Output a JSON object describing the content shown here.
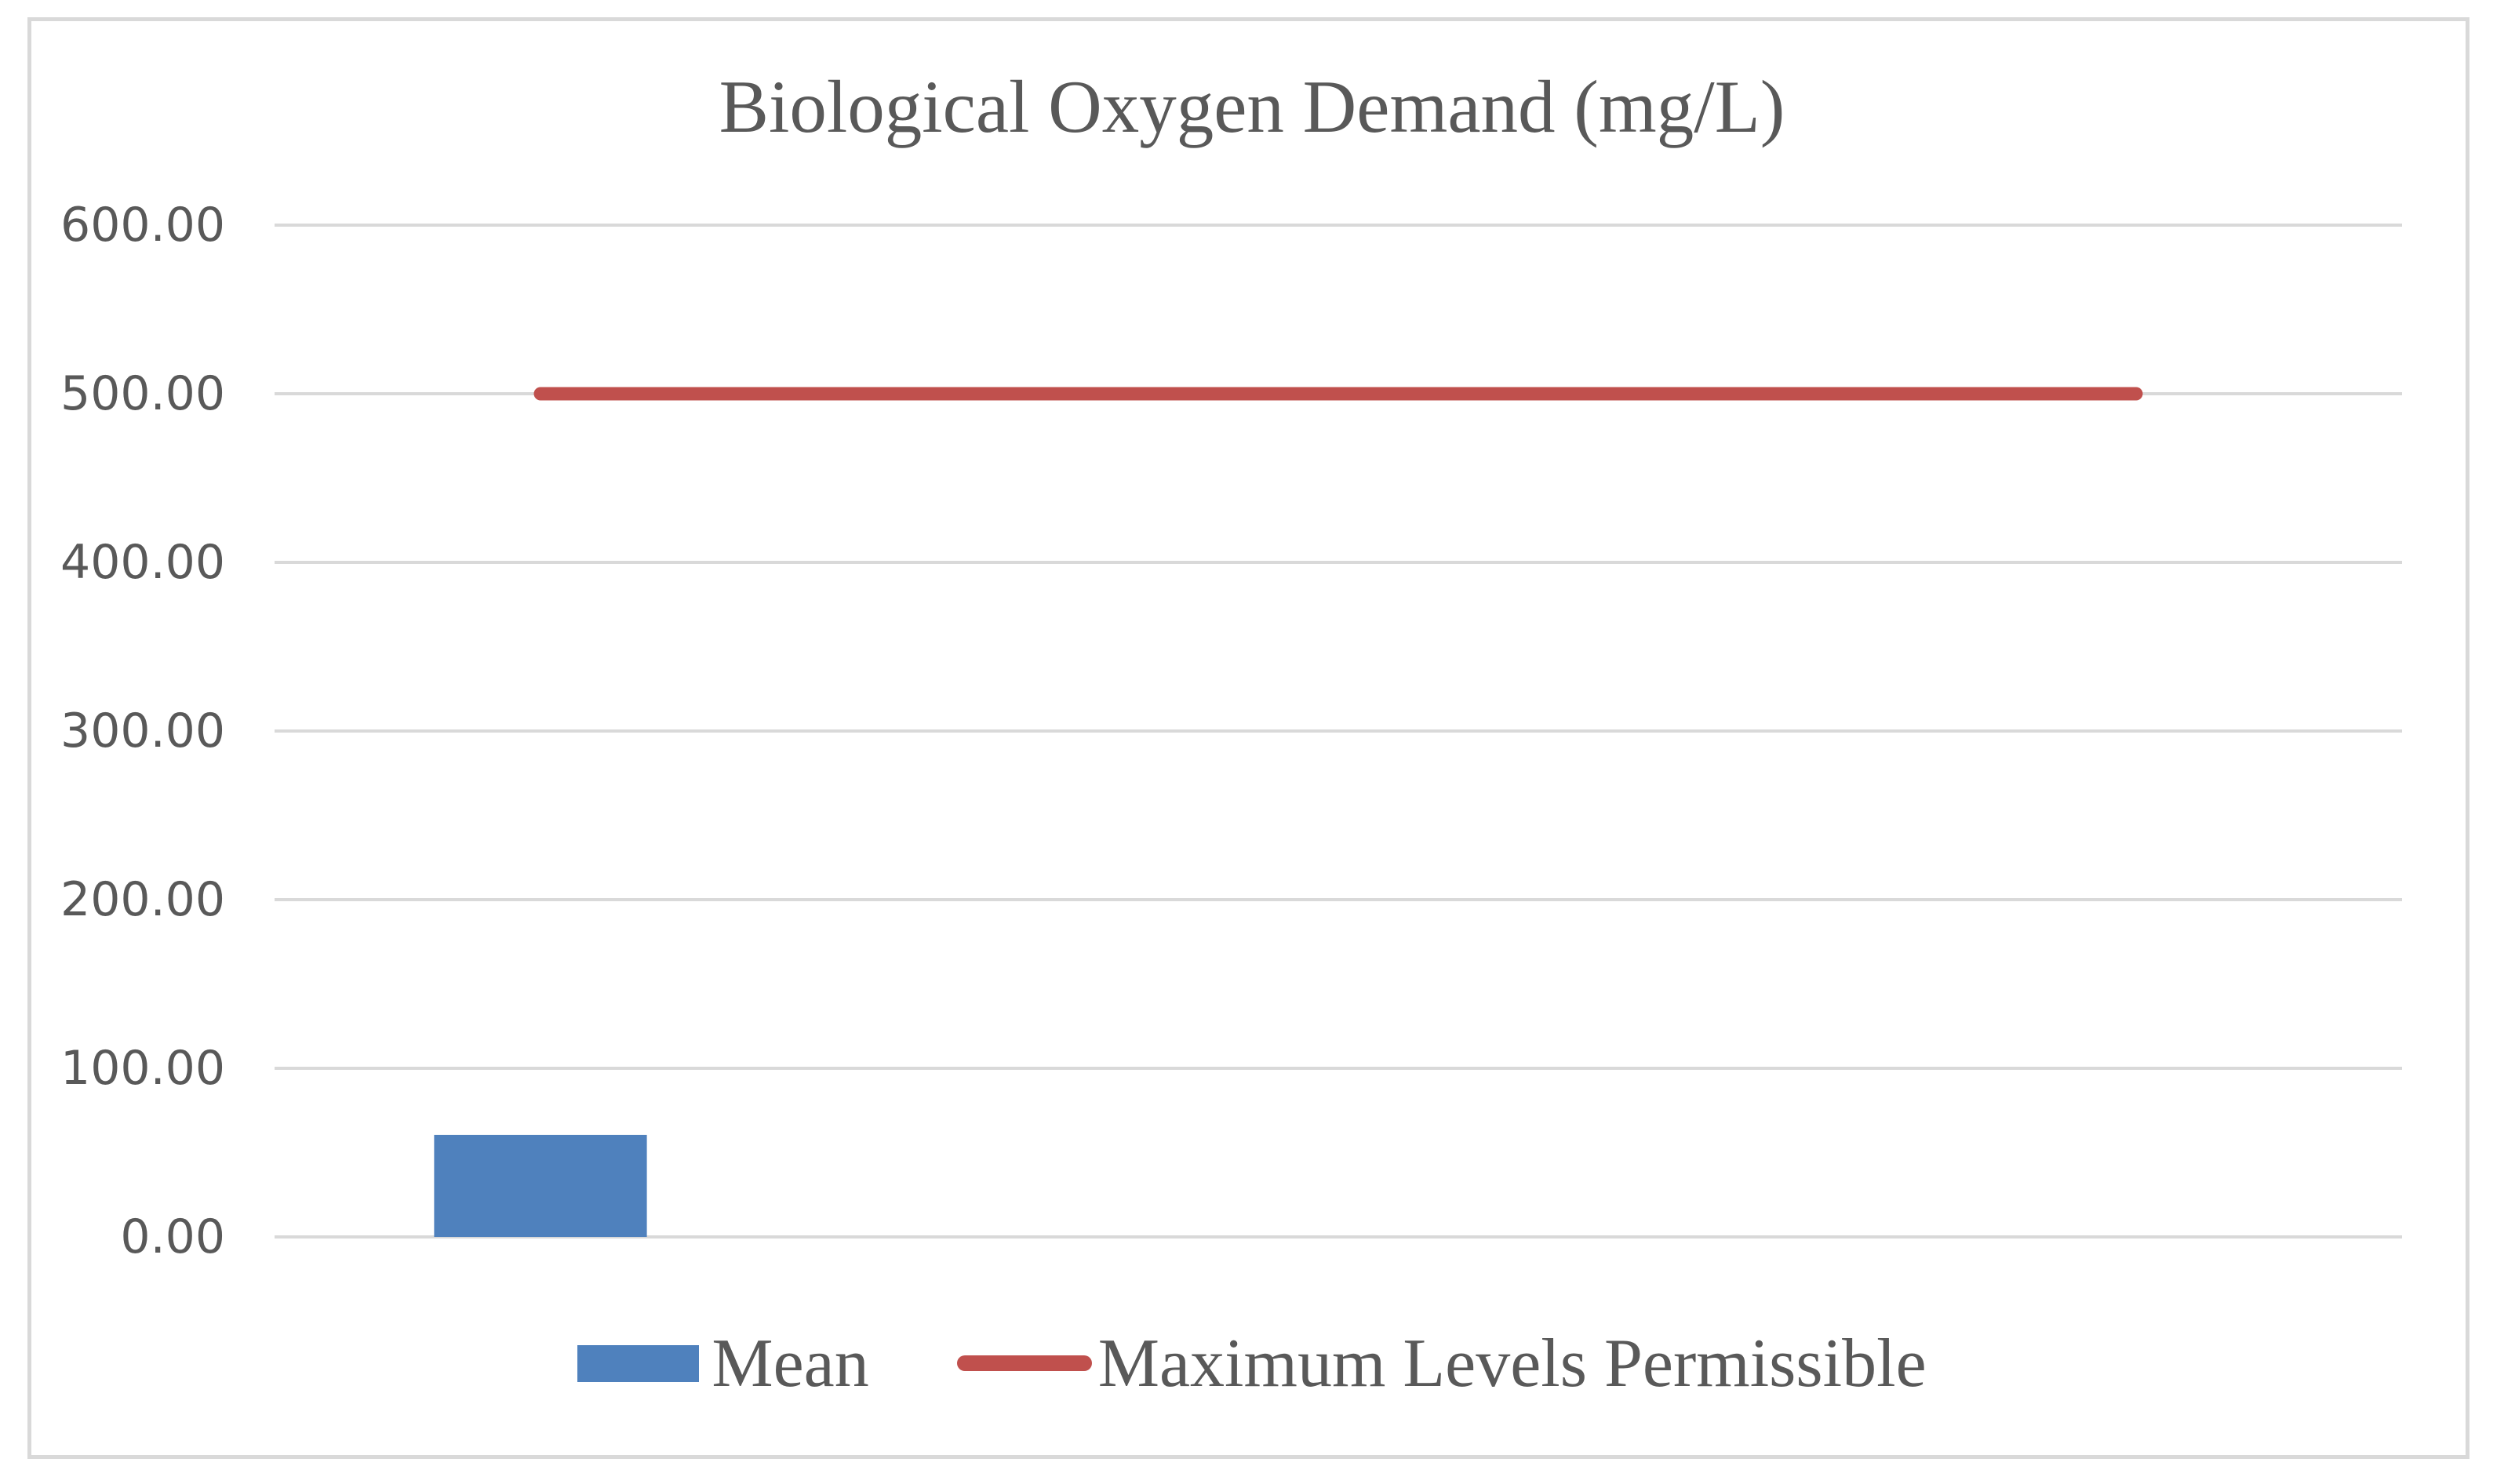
{
  "frame": {
    "background": "#FFFFFF",
    "border_color": "#D9D9D9"
  },
  "chart_data": {
    "type": "bar",
    "title": "Biological Oxygen Demand (mg/L)",
    "categories": [
      "",
      "",
      "",
      ""
    ],
    "series": [
      {
        "name": "Mean",
        "type": "bar",
        "color": "#4F81BD",
        "values": [
          60.5
        ]
      },
      {
        "name": "Maximum Levels Permissible",
        "type": "line",
        "color": "#C0504D",
        "value": 500
      }
    ],
    "xlabel": "",
    "ylabel": "",
    "ylim": [
      0,
      600
    ],
    "ytick_values": [
      600,
      500,
      400,
      300,
      200,
      100,
      0
    ],
    "ytick_labels": [
      "600.00",
      "500.00",
      "400.00",
      "300.00",
      "200.00",
      "100.00",
      "0.00"
    ],
    "grid": "horizontal",
    "gridline_color": "#D9D9D9",
    "text_color": "#595959",
    "legend_position": "bottom"
  },
  "legend": {
    "items": [
      {
        "label": "Mean",
        "marker": "bar-swatch",
        "color": "#4F81BD"
      },
      {
        "label": "Maximum Levels Permissible",
        "marker": "line-swatch",
        "color": "#C0504D"
      }
    ]
  }
}
